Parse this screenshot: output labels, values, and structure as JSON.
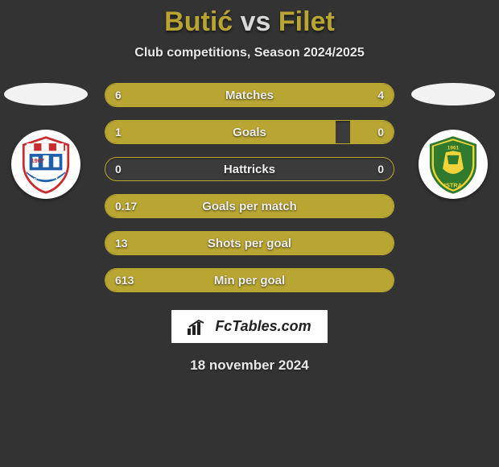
{
  "title": {
    "left": "Butić",
    "vs": "vs",
    "right": "Filet"
  },
  "subtitle": "Club competitions, Season 2024/2025",
  "date": "18 november 2024",
  "brand": "FcTables.com",
  "colors": {
    "background": "#333333",
    "accent": "#b8a532",
    "bar_bg": "#3b3b3b",
    "text_light": "#efefef"
  },
  "bars": [
    {
      "label": "Matches",
      "left_value": "6",
      "right_value": "4",
      "left_pct": 60,
      "right_pct": 40
    },
    {
      "label": "Goals",
      "left_value": "1",
      "right_value": "0",
      "left_pct": 80,
      "right_pct": 15
    },
    {
      "label": "Hattricks",
      "left_value": "0",
      "right_value": "0",
      "left_pct": 0,
      "right_pct": 0
    },
    {
      "label": "Goals per match",
      "left_value": "0.17",
      "right_value": "",
      "left_pct": 100,
      "right_pct": 0
    },
    {
      "label": "Shots per goal",
      "left_value": "13",
      "right_value": "",
      "left_pct": 100,
      "right_pct": 0
    },
    {
      "label": "Min per goal",
      "left_value": "613",
      "right_value": "",
      "left_pct": 100,
      "right_pct": 0
    }
  ],
  "badges": {
    "left": {
      "name": "SLAVEN",
      "year": "1907",
      "primary": "#c72c2f",
      "secondary": "#1f5ea8"
    },
    "right": {
      "name": "ISTRA",
      "year": "1961",
      "primary": "#f2d438",
      "secondary": "#2f7a2f"
    }
  }
}
